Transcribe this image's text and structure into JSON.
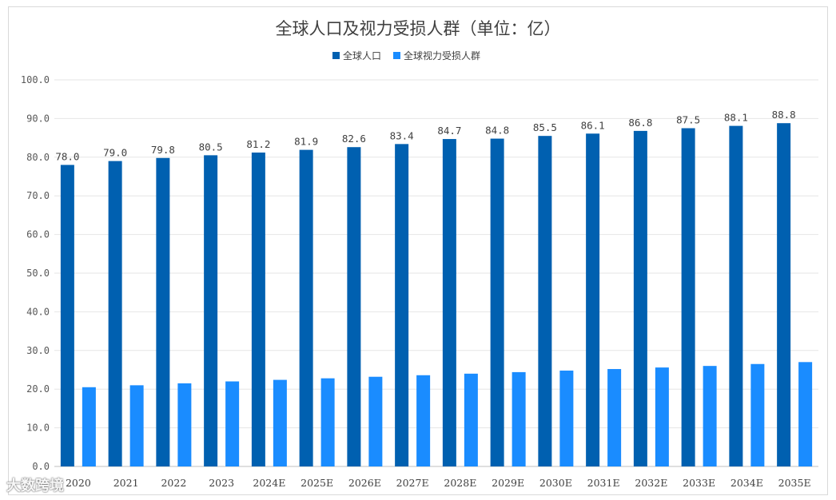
{
  "chart_data": {
    "type": "bar",
    "title": "全球人口及视力受损人群（单位：亿）",
    "categories": [
      "2020",
      "2021",
      "2022",
      "2023",
      "2024E",
      "2025E",
      "2026E",
      "2027E",
      "2028E",
      "2029E",
      "2030E",
      "2031E",
      "2032E",
      "2033E",
      "2034E",
      "2035E"
    ],
    "series": [
      {
        "name": "全球人口",
        "color": "#0060b0",
        "values": [
          78.0,
          79.0,
          79.8,
          80.5,
          81.2,
          81.9,
          82.6,
          83.4,
          84.7,
          84.8,
          85.5,
          86.1,
          86.8,
          87.5,
          88.1,
          88.8
        ],
        "data_labels": true
      },
      {
        "name": "全球视力受损人群",
        "color": "#1a8cff",
        "values": [
          20.5,
          21.0,
          21.5,
          22.0,
          22.4,
          22.8,
          23.2,
          23.6,
          24.0,
          24.4,
          24.8,
          25.2,
          25.6,
          26.0,
          26.5,
          27.0
        ],
        "data_labels": false
      }
    ],
    "ylim": [
      0,
      100
    ],
    "yticks": [
      "0.0",
      "10.0",
      "20.0",
      "30.0",
      "40.0",
      "50.0",
      "60.0",
      "70.0",
      "80.0",
      "90.0",
      "100.0"
    ],
    "grid": true,
    "legend": "top-center"
  },
  "watermark": "大数跨境"
}
